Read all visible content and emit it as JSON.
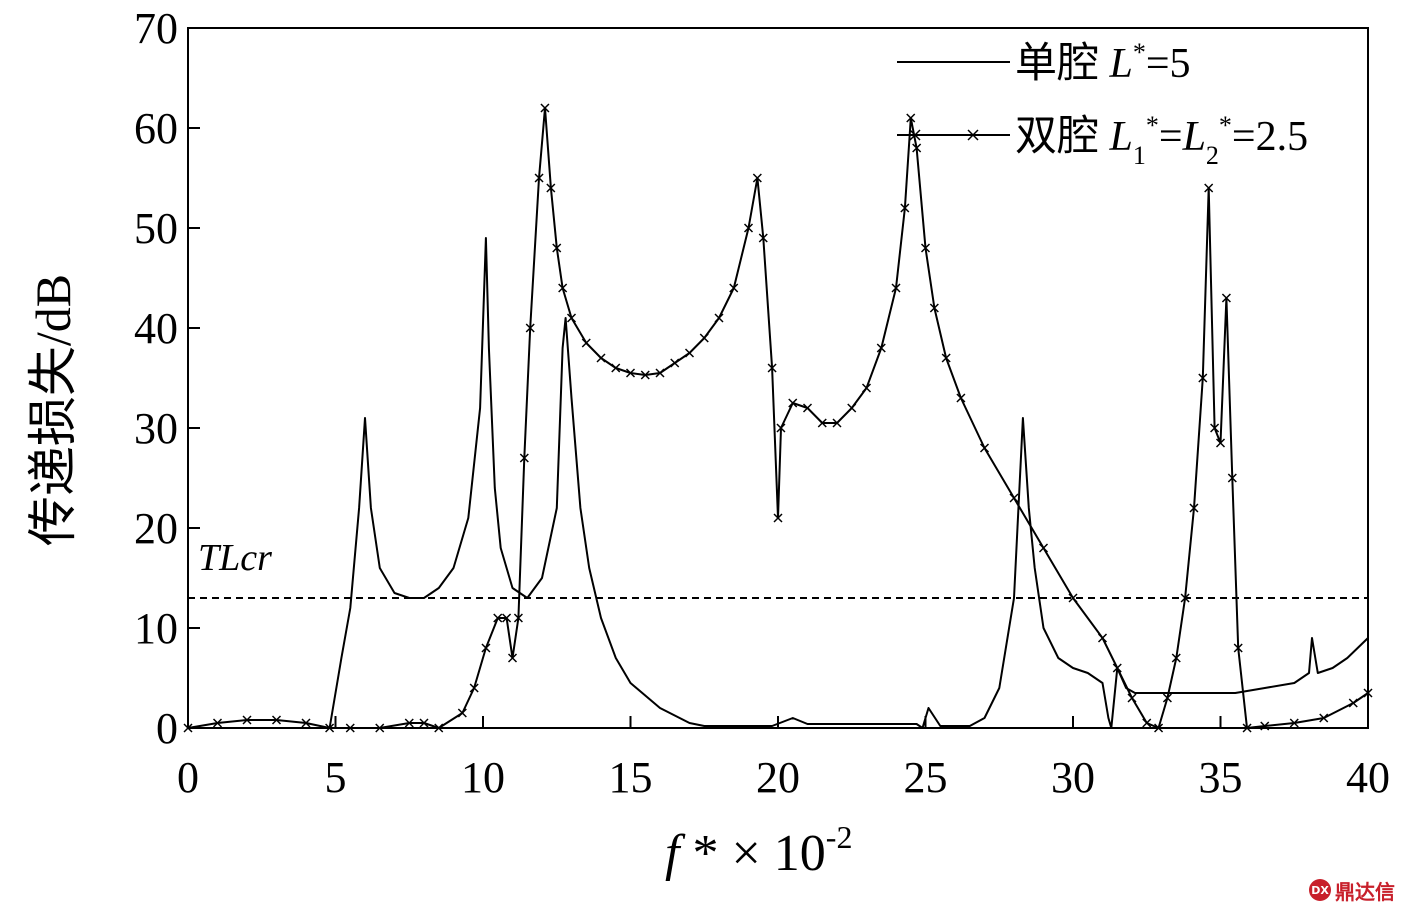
{
  "chart_data": {
    "type": "line",
    "title": "",
    "ylabel": "传递损失/dB",
    "xlabel": {
      "base": "f",
      "mid": " * × 10",
      "exp": "-2"
    },
    "xlim": [
      0,
      40
    ],
    "ylim": [
      0,
      70
    ],
    "xticks": [
      "0",
      "5",
      "10",
      "15",
      "20",
      "25",
      "30",
      "35",
      "40"
    ],
    "yticks": [
      "0",
      "10",
      "20",
      "30",
      "40",
      "50",
      "60",
      "70"
    ],
    "grid": false,
    "legend_position": "top-right",
    "legend": [
      {
        "prefix": "单腔 ",
        "var": "L",
        "sup": "*",
        "rest": "=5"
      },
      {
        "prefix": "双腔 ",
        "var1": "L",
        "sub1": "1",
        "sup1": "*",
        "eq": "=",
        "var2": "L",
        "sub2": "2",
        "sup2": "*",
        "rest": "=2.5"
      }
    ],
    "threshold": {
      "label": "TL",
      "label_sub": "cr",
      "y": 13
    },
    "series": [
      {
        "name": "单腔 L*=5",
        "marker": "none",
        "x": [
          0,
          4.8,
          5.2,
          5.5,
          5.8,
          6.0,
          6.2,
          6.5,
          7.0,
          7.5,
          8.0,
          8.5,
          9.0,
          9.5,
          9.9,
          10.1,
          10.2,
          10.4,
          10.6,
          11.0,
          11.5,
          12.0,
          12.5,
          12.7,
          12.8,
          13.0,
          13.3,
          13.6,
          14.0,
          14.5,
          15.0,
          16.0,
          17.0,
          17.5,
          19.8,
          20.5,
          21.0,
          24.7,
          24.9,
          25.1,
          25.5,
          26.5,
          27.0,
          27.5,
          28.0,
          28.3,
          28.5,
          28.7,
          29.0,
          29.5,
          30.0,
          30.5,
          31.0,
          31.2,
          31.3,
          31.5,
          31.8,
          32.1,
          32.5,
          33.0,
          35.5,
          36.5,
          37.5,
          38.0,
          38.1,
          38.3,
          38.8,
          39.3,
          40.0
        ],
        "y": [
          0,
          0,
          7,
          12,
          22,
          31,
          22,
          16,
          13.5,
          13,
          13,
          14,
          16,
          21,
          32,
          49,
          38,
          24,
          18,
          14,
          13,
          15,
          22,
          38,
          41,
          33,
          22,
          16,
          11,
          7,
          4.5,
          2,
          0.5,
          0.2,
          0.2,
          1,
          0.4,
          0.4,
          0,
          2,
          0.2,
          0.2,
          1,
          4,
          13,
          31,
          22,
          16,
          10,
          7,
          6,
          5.5,
          4.5,
          1,
          0,
          6,
          4,
          3.5,
          3.5,
          3.5,
          3.5,
          4,
          4.5,
          5.5,
          9,
          5.5,
          6,
          7,
          9
        ]
      },
      {
        "name": "双腔 L1*=L2*=2.5",
        "marker": "x",
        "x": [
          0,
          1,
          2,
          3,
          4,
          4.8,
          5.5,
          6.5,
          7.5,
          8,
          8.5,
          9.3,
          9.7,
          10.1,
          10.5,
          10.8,
          11.0,
          11.2,
          11.4,
          11.6,
          11.9,
          12.1,
          12.3,
          12.5,
          12.7,
          13.0,
          13.5,
          14.0,
          14.5,
          15.0,
          15.5,
          16.0,
          16.5,
          17.0,
          17.5,
          18.0,
          18.5,
          19.0,
          19.3,
          19.5,
          19.8,
          20.0,
          20.1,
          20.5,
          21.0,
          21.5,
          22.0,
          22.5,
          23.0,
          23.5,
          24.0,
          24.3,
          24.5,
          24.7,
          25.0,
          25.3,
          25.7,
          26.2,
          27.0,
          28.0,
          29.0,
          30.0,
          31.0,
          31.5,
          32.0,
          32.5,
          32.9,
          33.2,
          33.5,
          33.8,
          34.1,
          34.4,
          34.6,
          34.8,
          35.0,
          35.2,
          35.4,
          35.6,
          35.9,
          36.5,
          37.5,
          38.5,
          39.5,
          40.0
        ],
        "y": [
          0,
          0.5,
          0.8,
          0.8,
          0.5,
          0,
          0,
          0,
          0.5,
          0.5,
          0,
          1.5,
          4,
          8,
          11,
          11,
          7,
          11,
          27,
          40,
          55,
          62,
          54,
          48,
          44,
          41,
          38.5,
          37,
          36,
          35.5,
          35.3,
          35.5,
          36.5,
          37.5,
          39,
          41,
          44,
          50,
          55,
          49,
          36,
          21,
          30,
          32.5,
          32,
          30.5,
          30.5,
          32,
          34,
          38,
          44,
          52,
          61,
          58,
          48,
          42,
          37,
          33,
          28,
          23,
          18,
          13,
          9,
          6,
          3,
          0.5,
          0,
          3,
          7,
          13,
          22,
          35,
          54,
          30,
          28.5,
          43,
          25,
          8,
          0,
          0.2,
          0.5,
          1,
          2.5,
          3.5
        ]
      }
    ]
  },
  "watermark": {
    "badge": "DX",
    "text": "鼎达信"
  }
}
